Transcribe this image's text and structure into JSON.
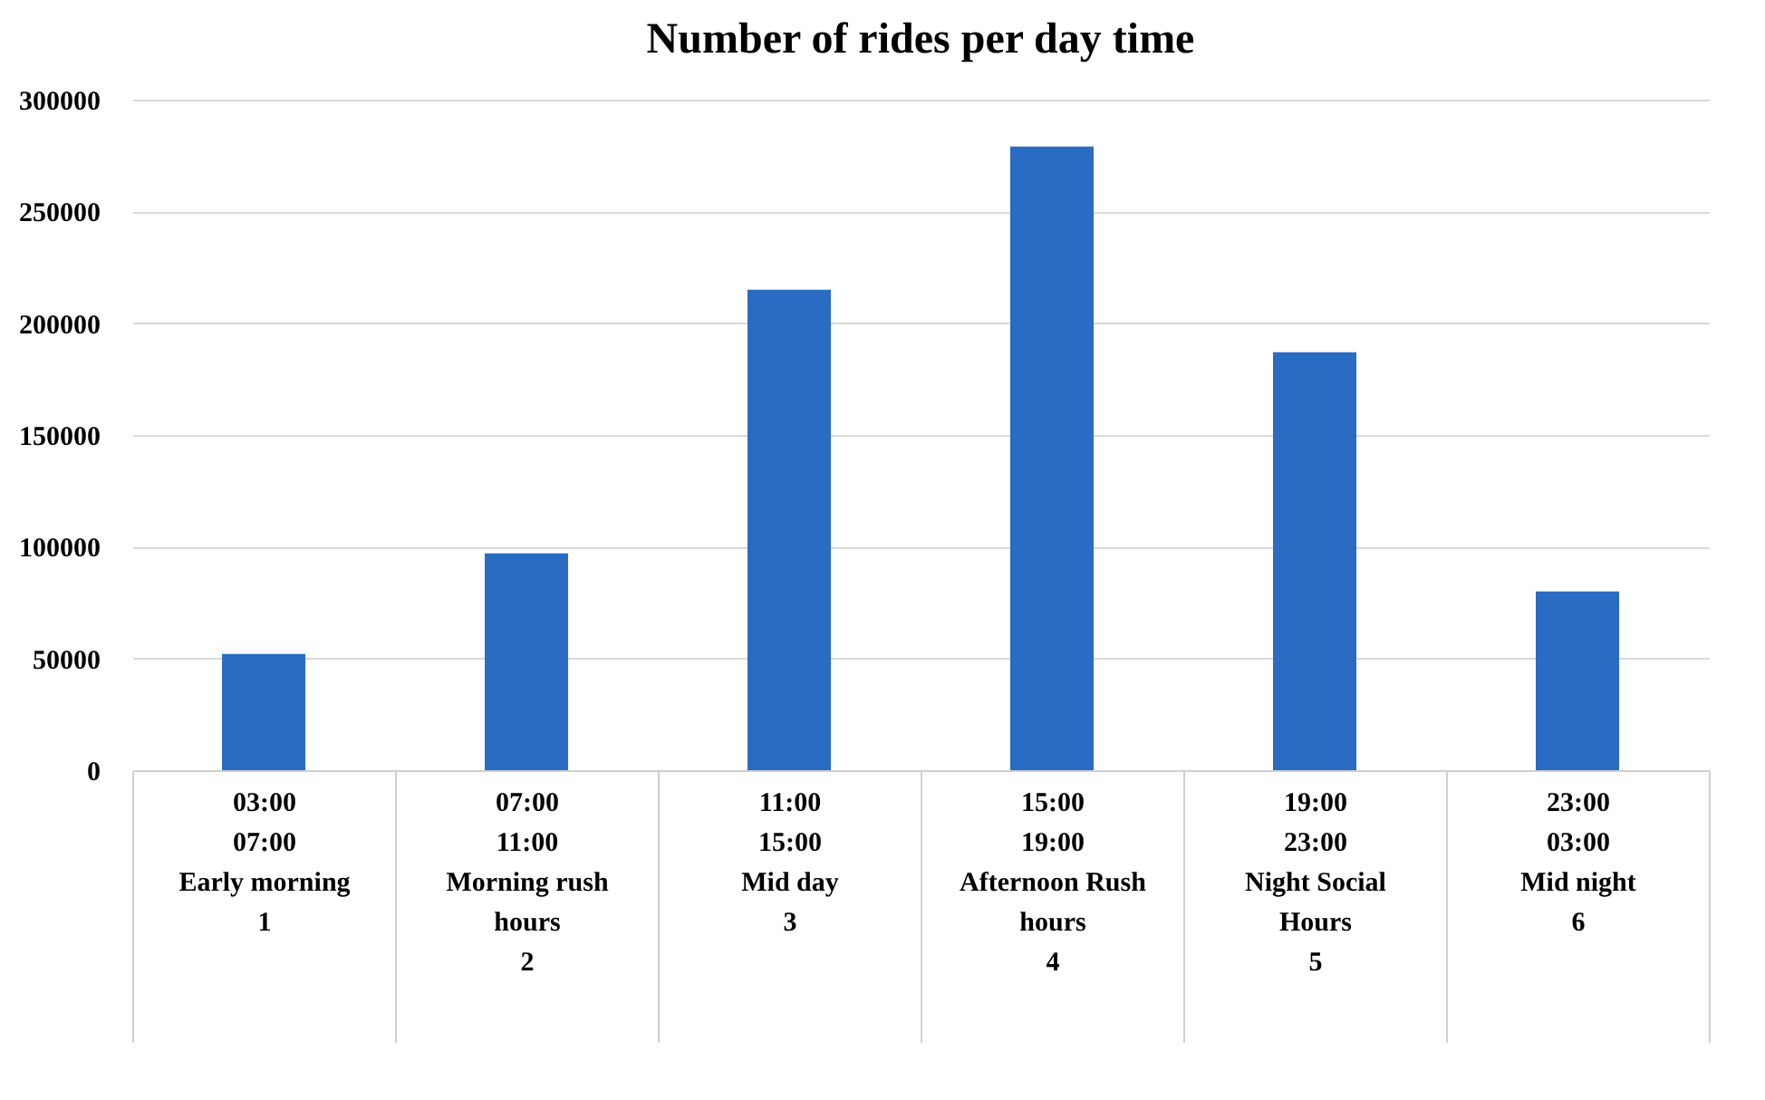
{
  "chart_data": {
    "type": "bar",
    "title": "Number of rides per day time",
    "categories": [
      "03:00\n07:00\nEarly morning\n1",
      "07:00\n11:00\nMorning rush hours\n2",
      "11:00\n15:00\nMid day\n3",
      "15:00\n19:00\nAfternoon Rush hours\n4",
      "19:00\n23:00\nNight Social Hours\n5",
      "23:00\n03:00\nMid night\n6"
    ],
    "values": [
      52000,
      97000,
      215000,
      279000,
      187000,
      80000
    ],
    "color": "#2a6bc4",
    "ylim": [
      0,
      300000
    ],
    "yticks": [
      0,
      50000,
      100000,
      150000,
      200000,
      250000,
      300000
    ],
    "grid": "y"
  }
}
